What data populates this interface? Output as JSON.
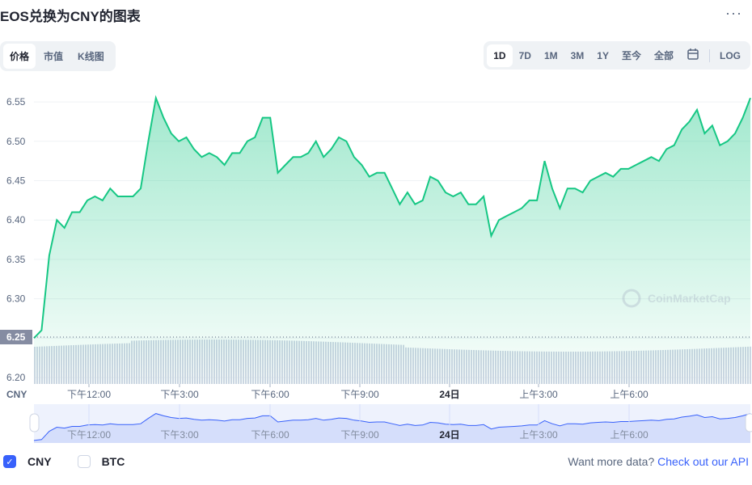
{
  "header": {
    "title": "EOS兑换为CNY的图表",
    "more_icon": "ellipsis-icon",
    "more_label": "···"
  },
  "view_tabs": [
    {
      "label": "价格",
      "active": true
    },
    {
      "label": "市值",
      "active": false
    },
    {
      "label": "K线图",
      "active": false
    }
  ],
  "ranges": [
    {
      "label": "1D",
      "active": true
    },
    {
      "label": "7D"
    },
    {
      "label": "1M"
    },
    {
      "label": "3M"
    },
    {
      "label": "1Y"
    },
    {
      "label": "至今"
    },
    {
      "label": "全部"
    }
  ],
  "calendar_icon": "calendar-icon",
  "log_label": "LOG",
  "watermark": "CoinMarketCap",
  "chart_data": {
    "type": "area",
    "currency_label": "CNY",
    "ylim": [
      6.2,
      6.57
    ],
    "yticks": [
      "6.20",
      "6.25",
      "6.30",
      "6.35",
      "6.40",
      "6.45",
      "6.50",
      "6.55"
    ],
    "current_marker": "6.25",
    "xticks": [
      "下午12:00",
      "下午3:00",
      "下午6:00",
      "下午9:00",
      "24日",
      "上午3:00",
      "上午6:00"
    ],
    "line_color": "#16c784",
    "grid": true,
    "values": [
      6.25,
      6.26,
      6.355,
      6.4,
      6.39,
      6.41,
      6.41,
      6.425,
      6.43,
      6.425,
      6.44,
      6.43,
      6.43,
      6.43,
      6.44,
      6.5,
      6.555,
      6.53,
      6.51,
      6.5,
      6.505,
      6.49,
      6.48,
      6.485,
      6.48,
      6.47,
      6.485,
      6.485,
      6.5,
      6.505,
      6.53,
      6.53,
      6.46,
      6.47,
      6.48,
      6.48,
      6.485,
      6.5,
      6.48,
      6.49,
      6.505,
      6.5,
      6.48,
      6.47,
      6.455,
      6.46,
      6.46,
      6.44,
      6.42,
      6.435,
      6.42,
      6.425,
      6.455,
      6.45,
      6.435,
      6.43,
      6.435,
      6.42,
      6.42,
      6.43,
      6.38,
      6.4,
      6.405,
      6.41,
      6.415,
      6.425,
      6.425,
      6.475,
      6.44,
      6.415,
      6.44,
      6.44,
      6.435,
      6.45,
      6.455,
      6.46,
      6.455,
      6.465,
      6.465,
      6.47,
      6.475,
      6.48,
      6.475,
      6.49,
      6.495,
      6.515,
      6.525,
      6.54,
      6.51,
      6.52,
      6.495,
      6.5,
      6.51,
      6.53,
      6.555
    ]
  },
  "legend": [
    {
      "label": "CNY",
      "checked": true
    },
    {
      "label": "BTC",
      "checked": false
    }
  ],
  "footer": {
    "text": "Want more data?",
    "link": "Check out our API"
  }
}
